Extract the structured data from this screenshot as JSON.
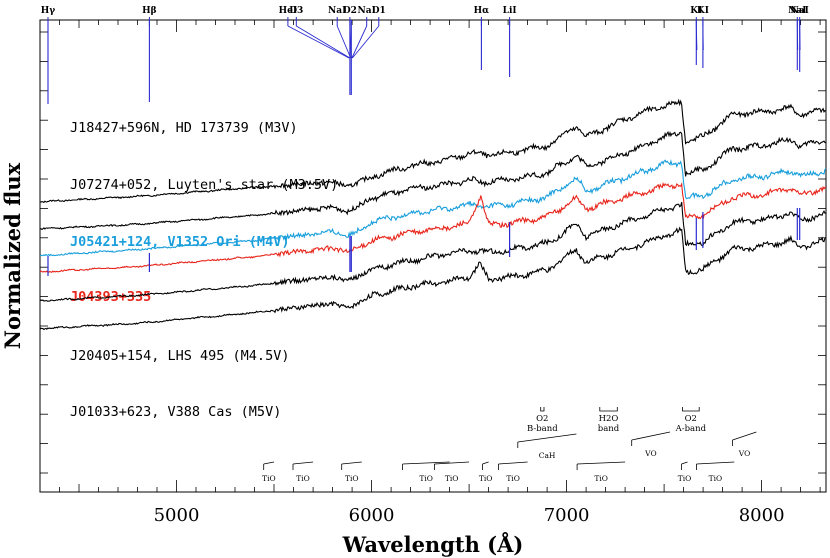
{
  "chart_data": {
    "type": "line",
    "title": "",
    "xlabel": "Wavelength (Å)",
    "ylabel": "Normalized flux",
    "xlim": [
      4300,
      8330
    ],
    "x_ticks": [
      5000,
      6000,
      7000,
      8000
    ],
    "x_tick_labels": [
      "5000",
      "6000",
      "7000",
      "8000"
    ],
    "grid": false,
    "colors": {
      "black": "#000000",
      "blue": "#1a9fdc",
      "red": "#e8261c",
      "line_marker": "#2b2bd0"
    },
    "series": [
      {
        "name": "J18427+596N, HD 173739 (M3V)",
        "color": "#000000",
        "points": [
          [
            4300,
            0.78
          ],
          [
            4800,
            0.84
          ],
          [
            5400,
            0.94
          ],
          [
            5800,
            1.0
          ],
          [
            5880,
            0.95
          ],
          [
            6000,
            1.06
          ],
          [
            6200,
            1.18
          ],
          [
            6400,
            1.25
          ],
          [
            6500,
            1.32
          ],
          [
            6600,
            1.3
          ],
          [
            6700,
            1.32
          ],
          [
            6900,
            1.4
          ],
          [
            7000,
            1.55
          ],
          [
            7050,
            1.62
          ],
          [
            7100,
            1.5
          ],
          [
            7300,
            1.7
          ],
          [
            7500,
            1.85
          ],
          [
            7590,
            1.88
          ],
          [
            7610,
            1.45
          ],
          [
            7700,
            1.5
          ],
          [
            7850,
            1.75
          ],
          [
            8000,
            1.78
          ],
          [
            8150,
            1.82
          ],
          [
            8200,
            1.75
          ],
          [
            8330,
            1.8
          ]
        ]
      },
      {
        "name": "J07274+052, Luyten's star (M3.5V)",
        "color": "#000000",
        "points": [
          [
            4300,
            0.48
          ],
          [
            4800,
            0.53
          ],
          [
            5400,
            0.63
          ],
          [
            5800,
            0.72
          ],
          [
            5880,
            0.67
          ],
          [
            6000,
            0.82
          ],
          [
            6200,
            0.92
          ],
          [
            6400,
            0.98
          ],
          [
            6500,
            1.02
          ],
          [
            6600,
            1.0
          ],
          [
            6700,
            1.02
          ],
          [
            6900,
            1.1
          ],
          [
            7000,
            1.23
          ],
          [
            7050,
            1.3
          ],
          [
            7100,
            1.17
          ],
          [
            7300,
            1.32
          ],
          [
            7500,
            1.5
          ],
          [
            7590,
            1.55
          ],
          [
            7610,
            1.1
          ],
          [
            7700,
            1.13
          ],
          [
            7850,
            1.37
          ],
          [
            8000,
            1.4
          ],
          [
            8150,
            1.47
          ],
          [
            8200,
            1.4
          ],
          [
            8330,
            1.47
          ]
        ]
      },
      {
        "name": "J05421+124, V1352 Ori (M4V)",
        "color": "#1a9fdc",
        "points": [
          [
            4300,
            0.18
          ],
          [
            4800,
            0.25
          ],
          [
            5400,
            0.35
          ],
          [
            5800,
            0.45
          ],
          [
            5880,
            0.4
          ],
          [
            6000,
            0.55
          ],
          [
            6200,
            0.65
          ],
          [
            6400,
            0.71
          ],
          [
            6500,
            0.75
          ],
          [
            6600,
            0.73
          ],
          [
            6700,
            0.75
          ],
          [
            6900,
            0.83
          ],
          [
            7000,
            0.97
          ],
          [
            7050,
            1.04
          ],
          [
            7100,
            0.9
          ],
          [
            7300,
            1.05
          ],
          [
            7500,
            1.2
          ],
          [
            7590,
            1.22
          ],
          [
            7610,
            0.82
          ],
          [
            7700,
            0.85
          ],
          [
            7850,
            1.03
          ],
          [
            8000,
            1.06
          ],
          [
            8150,
            1.13
          ],
          [
            8200,
            1.06
          ],
          [
            8330,
            1.13
          ]
        ]
      },
      {
        "name": "J04393+335",
        "color": "#e8261c",
        "points": [
          [
            4300,
            0.0
          ],
          [
            4800,
            0.06
          ],
          [
            5400,
            0.17
          ],
          [
            5800,
            0.27
          ],
          [
            5880,
            0.22
          ],
          [
            6000,
            0.34
          ],
          [
            6200,
            0.44
          ],
          [
            6400,
            0.5
          ],
          [
            6500,
            0.54
          ],
          [
            6560,
            0.85
          ],
          [
            6600,
            0.52
          ],
          [
            6700,
            0.54
          ],
          [
            6900,
            0.61
          ],
          [
            7000,
            0.75
          ],
          [
            7050,
            0.82
          ],
          [
            7100,
            0.7
          ],
          [
            7300,
            0.83
          ],
          [
            7500,
            0.95
          ],
          [
            7590,
            0.98
          ],
          [
            7610,
            0.6
          ],
          [
            7700,
            0.63
          ],
          [
            7850,
            0.83
          ],
          [
            8000,
            0.86
          ],
          [
            8150,
            0.93
          ],
          [
            8200,
            0.86
          ],
          [
            8330,
            0.93
          ]
        ]
      },
      {
        "name": "J20405+154, LHS 495 (M4.5V)",
        "color": "#000000",
        "points": [
          [
            4300,
            -0.32
          ],
          [
            4800,
            -0.26
          ],
          [
            5400,
            -0.15
          ],
          [
            5800,
            -0.05
          ],
          [
            5880,
            -0.1
          ],
          [
            6000,
            0.03
          ],
          [
            6200,
            0.13
          ],
          [
            6400,
            0.2
          ],
          [
            6500,
            0.24
          ],
          [
            6600,
            0.22
          ],
          [
            6700,
            0.24
          ],
          [
            6900,
            0.32
          ],
          [
            7000,
            0.46
          ],
          [
            7050,
            0.53
          ],
          [
            7100,
            0.4
          ],
          [
            7300,
            0.55
          ],
          [
            7500,
            0.7
          ],
          [
            7590,
            0.74
          ],
          [
            7610,
            0.3
          ],
          [
            7700,
            0.33
          ],
          [
            7850,
            0.55
          ],
          [
            8000,
            0.58
          ],
          [
            8150,
            0.65
          ],
          [
            8200,
            0.58
          ],
          [
            8330,
            0.65
          ]
        ]
      },
      {
        "name": "J01033+623, V388 Cas (M5V)",
        "color": "#000000",
        "points": [
          [
            4300,
            -0.63
          ],
          [
            4800,
            -0.57
          ],
          [
            5400,
            -0.45
          ],
          [
            5800,
            -0.35
          ],
          [
            5880,
            -0.4
          ],
          [
            6000,
            -0.26
          ],
          [
            6200,
            -0.16
          ],
          [
            6400,
            -0.1
          ],
          [
            6500,
            -0.06
          ],
          [
            6555,
            0.09
          ],
          [
            6600,
            -0.08
          ],
          [
            6700,
            -0.06
          ],
          [
            6900,
            0.02
          ],
          [
            7000,
            0.17
          ],
          [
            7050,
            0.25
          ],
          [
            7100,
            0.11
          ],
          [
            7300,
            0.25
          ],
          [
            7500,
            0.4
          ],
          [
            7590,
            0.46
          ],
          [
            7610,
            0.0
          ],
          [
            7700,
            0.03
          ],
          [
            7850,
            0.25
          ],
          [
            8000,
            0.28
          ],
          [
            8150,
            0.35
          ],
          [
            8200,
            0.28
          ],
          [
            8330,
            0.35
          ]
        ]
      }
    ],
    "line_markers": [
      {
        "label": "Hγ",
        "wl": 4341
      },
      {
        "label": "Hβ",
        "wl": 4861
      },
      {
        "label": "HeI",
        "wl": 5571
      },
      {
        "label": "D3",
        "wl": 5614
      },
      {
        "label": "NaI",
        "wl": 5824
      },
      {
        "label": "D2",
        "wl": 5889
      },
      {
        "label": "NaI",
        "wl": 5975
      },
      {
        "label": "D1",
        "wl": 6037
      },
      {
        "label": "Hα",
        "wl": 6563
      },
      {
        "label": "LiI",
        "wl": 6708
      },
      {
        "label": "KI",
        "wl": 7665
      },
      {
        "label": "KI",
        "wl": 7699
      },
      {
        "label": "NaI",
        "wl": 8183
      },
      {
        "label": "NaI",
        "wl": 8195
      }
    ],
    "telluric_bands": [
      {
        "label": "O2 B-band",
        "start": 6867,
        "end": 6884
      },
      {
        "label": "H2O band",
        "start": 7170,
        "end": 7260
      },
      {
        "label": "O2 A-band",
        "start": 7594,
        "end": 7680
      }
    ],
    "molecular_bands": [
      {
        "label": "CaH",
        "start": 6750,
        "end": 7050
      },
      {
        "label": "VO",
        "start": 7334,
        "end": 7530
      },
      {
        "label": "VO",
        "start": 7851,
        "end": 7973
      },
      {
        "label": "TiO",
        "start": 5447,
        "end": 5500
      },
      {
        "label": "TiO",
        "start": 5597,
        "end": 5700
      },
      {
        "label": "TiO",
        "start": 5847,
        "end": 5950
      },
      {
        "label": "TiO",
        "start": 6159,
        "end": 6400
      },
      {
        "label": "TiO",
        "start": 6322,
        "end": 6500
      },
      {
        "label": "TiO",
        "start": 6569,
        "end": 6600
      },
      {
        "label": "TiO",
        "start": 6651,
        "end": 6800
      },
      {
        "label": "TiO",
        "start": 7054,
        "end": 7300
      },
      {
        "label": "TiO",
        "start": 7589,
        "end": 7620
      },
      {
        "label": "TiO",
        "start": 7666,
        "end": 7860
      }
    ]
  }
}
